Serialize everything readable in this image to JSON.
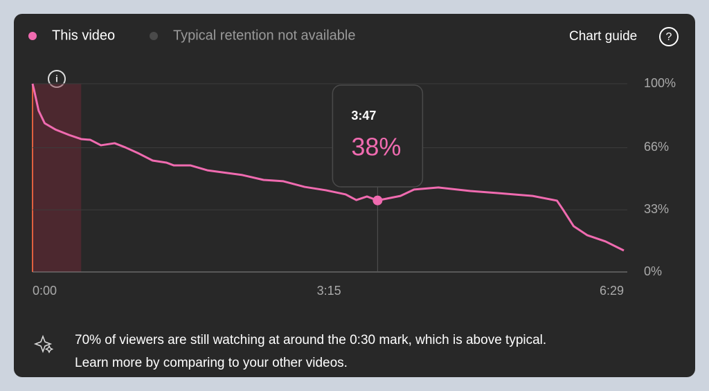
{
  "chart_data": {
    "type": "line",
    "series": [
      {
        "name": "This video",
        "color": "#f06bb0",
        "values": [
          100,
          96.7,
          85.7,
          79,
          75.7,
          72.8,
          70.6,
          70.2,
          67.3,
          68.4,
          66.2,
          62.9,
          59.2,
          58.1,
          56.6,
          56.6,
          54,
          51.5,
          48.9,
          48.2,
          45.2,
          43.4,
          41.9,
          41.2,
          38.2,
          40.1,
          38,
          40.4,
          43.8,
          44.9,
          43,
          41.9,
          40.4,
          37.9,
          33.1,
          24.3,
          19.5,
          16.2,
          11.4
        ]
      }
    ],
    "x": [
      0,
      1,
      4,
      8,
      15,
      24,
      32,
      38,
      45,
      54,
      61,
      70,
      79,
      88,
      93,
      104,
      115,
      138,
      152,
      165,
      179,
      193,
      202,
      206,
      213,
      220,
      227,
      242,
      251,
      267,
      288,
      306,
      329,
      345,
      349,
      356,
      365,
      377,
      389
    ],
    "legend_note": {
      "text": "Typical retention not available",
      "color": "#4a4a4a"
    },
    "xlim": [
      0,
      389
    ],
    "xticks": [
      {
        "value": 0,
        "label": "0:00"
      },
      {
        "value": 195,
        "label": "3:15"
      },
      {
        "value": 389,
        "label": "6:29"
      }
    ],
    "ylim": [
      0,
      100
    ],
    "yticks": [
      {
        "value": 0,
        "label": "0%"
      },
      {
        "value": 33,
        "label": "33%"
      },
      {
        "value": 66,
        "label": "66%"
      },
      {
        "value": 100,
        "label": "100%"
      }
    ],
    "grid": true,
    "highlight_x": [
      0,
      32
    ],
    "tooltip": {
      "x": 227,
      "label": "3:47",
      "value": 38,
      "value_label": "38%"
    },
    "chart_guide": "Chart guide",
    "insight": [
      "70% of viewers are still watching at around the 0:30 mark, which is above typical.",
      "Learn more by comparing to your other videos."
    ]
  }
}
